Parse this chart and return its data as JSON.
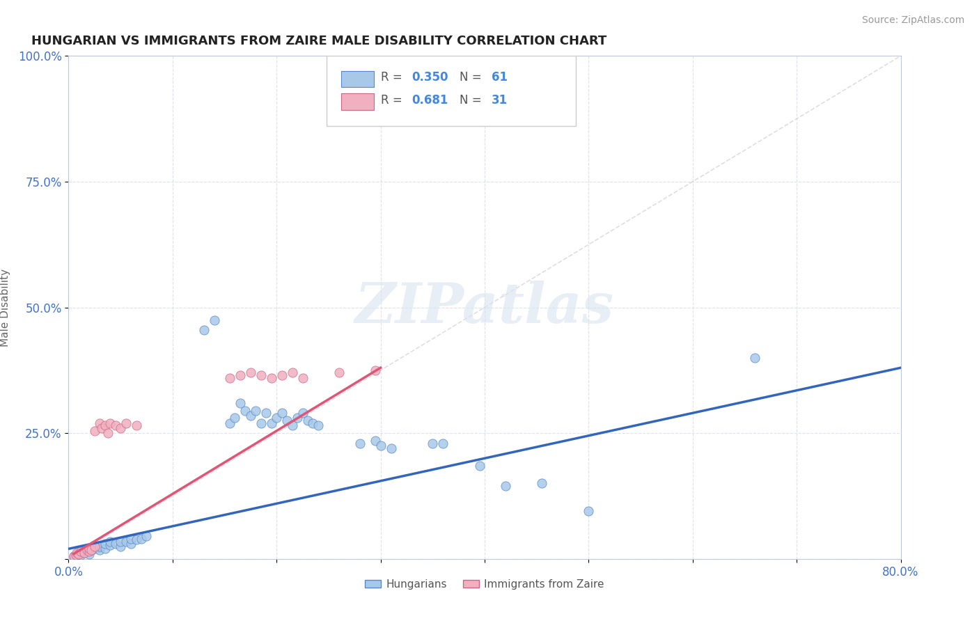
{
  "title": "HUNGARIAN VS IMMIGRANTS FROM ZAIRE MALE DISABILITY CORRELATION CHART",
  "source": "Source: ZipAtlas.com",
  "ylabel": "Male Disability",
  "xlim": [
    0.0,
    0.8
  ],
  "ylim": [
    0.0,
    1.0
  ],
  "xticks": [
    0.0,
    0.1,
    0.2,
    0.3,
    0.4,
    0.5,
    0.6,
    0.7,
    0.8
  ],
  "xticklabels": [
    "0.0%",
    "",
    "",
    "",
    "",
    "",
    "",
    "",
    "80.0%"
  ],
  "yticks": [
    0.0,
    0.25,
    0.5,
    0.75,
    1.0
  ],
  "yticklabels": [
    "",
    "25.0%",
    "50.0%",
    "75.0%",
    "100.0%"
  ],
  "hungarian_color": "#a8c8e8",
  "hungarian_edge_color": "#5588cc",
  "zaire_color": "#f0b0c0",
  "zaire_edge_color": "#cc6688",
  "hungarian_line_color": "#3366bb",
  "zaire_line_color": "#dd5577",
  "diag_line_color": "#d0d0d0",
  "watermark": "ZIPatlas",
  "watermark_color": "#d8e4f0",
  "hungarian_line_x": [
    0.0,
    0.8
  ],
  "hungarian_line_y": [
    0.02,
    0.38
  ],
  "zaire_line_x": [
    0.005,
    0.3
  ],
  "zaire_line_y": [
    0.01,
    0.38
  ],
  "hungarian_points": [
    [
      0.005,
      0.005
    ],
    [
      0.007,
      0.008
    ],
    [
      0.008,
      0.006
    ],
    [
      0.01,
      0.01
    ],
    [
      0.01,
      0.015
    ],
    [
      0.012,
      0.008
    ],
    [
      0.015,
      0.012
    ],
    [
      0.015,
      0.018
    ],
    [
      0.018,
      0.015
    ],
    [
      0.02,
      0.01
    ],
    [
      0.02,
      0.02
    ],
    [
      0.022,
      0.018
    ],
    [
      0.025,
      0.02
    ],
    [
      0.025,
      0.025
    ],
    [
      0.028,
      0.022
    ],
    [
      0.03,
      0.018
    ],
    [
      0.03,
      0.025
    ],
    [
      0.035,
      0.02
    ],
    [
      0.035,
      0.03
    ],
    [
      0.04,
      0.028
    ],
    [
      0.04,
      0.035
    ],
    [
      0.045,
      0.03
    ],
    [
      0.05,
      0.025
    ],
    [
      0.05,
      0.035
    ],
    [
      0.055,
      0.035
    ],
    [
      0.06,
      0.03
    ],
    [
      0.06,
      0.04
    ],
    [
      0.065,
      0.038
    ],
    [
      0.07,
      0.04
    ],
    [
      0.075,
      0.045
    ],
    [
      0.13,
      0.455
    ],
    [
      0.14,
      0.475
    ],
    [
      0.155,
      0.27
    ],
    [
      0.16,
      0.28
    ],
    [
      0.165,
      0.31
    ],
    [
      0.17,
      0.295
    ],
    [
      0.175,
      0.285
    ],
    [
      0.18,
      0.295
    ],
    [
      0.185,
      0.27
    ],
    [
      0.19,
      0.29
    ],
    [
      0.195,
      0.27
    ],
    [
      0.2,
      0.28
    ],
    [
      0.205,
      0.29
    ],
    [
      0.21,
      0.275
    ],
    [
      0.215,
      0.265
    ],
    [
      0.22,
      0.28
    ],
    [
      0.225,
      0.29
    ],
    [
      0.23,
      0.275
    ],
    [
      0.235,
      0.27
    ],
    [
      0.24,
      0.265
    ],
    [
      0.28,
      0.23
    ],
    [
      0.295,
      0.235
    ],
    [
      0.3,
      0.225
    ],
    [
      0.31,
      0.22
    ],
    [
      0.35,
      0.23
    ],
    [
      0.36,
      0.23
    ],
    [
      0.395,
      0.185
    ],
    [
      0.42,
      0.145
    ],
    [
      0.455,
      0.15
    ],
    [
      0.5,
      0.095
    ],
    [
      0.66,
      0.4
    ]
  ],
  "zaire_points": [
    [
      0.005,
      0.005
    ],
    [
      0.007,
      0.008
    ],
    [
      0.008,
      0.012
    ],
    [
      0.01,
      0.01
    ],
    [
      0.012,
      0.015
    ],
    [
      0.015,
      0.012
    ],
    [
      0.018,
      0.018
    ],
    [
      0.02,
      0.015
    ],
    [
      0.02,
      0.02
    ],
    [
      0.022,
      0.018
    ],
    [
      0.025,
      0.025
    ],
    [
      0.025,
      0.255
    ],
    [
      0.03,
      0.27
    ],
    [
      0.032,
      0.26
    ],
    [
      0.035,
      0.265
    ],
    [
      0.038,
      0.25
    ],
    [
      0.04,
      0.27
    ],
    [
      0.045,
      0.265
    ],
    [
      0.05,
      0.26
    ],
    [
      0.055,
      0.27
    ],
    [
      0.065,
      0.265
    ],
    [
      0.155,
      0.36
    ],
    [
      0.165,
      0.365
    ],
    [
      0.175,
      0.37
    ],
    [
      0.185,
      0.365
    ],
    [
      0.195,
      0.36
    ],
    [
      0.205,
      0.365
    ],
    [
      0.215,
      0.37
    ],
    [
      0.225,
      0.36
    ],
    [
      0.26,
      0.37
    ],
    [
      0.295,
      0.375
    ]
  ]
}
